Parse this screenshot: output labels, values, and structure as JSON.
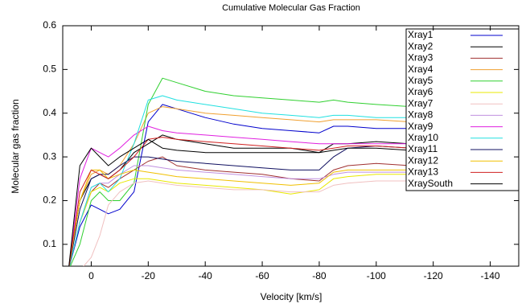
{
  "chart_data": {
    "type": "line",
    "title": "Cumulative Molecular Gas Fraction",
    "xlabel": "Velocity [km/s]",
    "ylabel": "Molecular gas fraction",
    "x": [
      8,
      4,
      0,
      -3,
      -6,
      -10,
      -15,
      -20,
      -25,
      -30,
      -40,
      -50,
      -60,
      -70,
      -80,
      -85,
      -90,
      -100,
      -112
    ],
    "xlim": [
      10,
      -150
    ],
    "xticks": [
      0,
      -20,
      -40,
      -60,
      -80,
      -100,
      -120,
      -140
    ],
    "ylim": [
      0.05,
      0.6
    ],
    "yticks": [
      0.1,
      0.2,
      0.3,
      0.4,
      0.5,
      0.6
    ],
    "legend": "upper right",
    "series": [
      {
        "name": "Xray1",
        "color": "#0000cc",
        "values": [
          0.04,
          0.14,
          0.19,
          0.18,
          0.17,
          0.18,
          0.22,
          0.38,
          0.42,
          0.41,
          0.39,
          0.375,
          0.365,
          0.36,
          0.355,
          0.37,
          0.37,
          0.365,
          0.365
        ]
      },
      {
        "name": "Xray2",
        "color": "#000000",
        "values": [
          0.04,
          0.2,
          0.25,
          0.26,
          0.25,
          0.27,
          0.31,
          0.33,
          0.35,
          0.34,
          0.33,
          0.32,
          0.32,
          0.32,
          0.31,
          0.33,
          0.33,
          0.335,
          0.33
        ]
      },
      {
        "name": "Xray3",
        "color": "#a03030",
        "values": [
          0.04,
          0.15,
          0.22,
          0.24,
          0.23,
          0.25,
          0.27,
          0.29,
          0.3,
          0.28,
          0.27,
          0.265,
          0.26,
          0.25,
          0.245,
          0.27,
          0.28,
          0.285,
          0.28
        ]
      },
      {
        "name": "Xray4",
        "color": "#f0a030",
        "values": [
          0.04,
          0.2,
          0.26,
          0.27,
          0.26,
          0.28,
          0.33,
          0.4,
          0.415,
          0.41,
          0.4,
          0.395,
          0.39,
          0.385,
          0.38,
          0.385,
          0.385,
          0.385,
          0.38
        ]
      },
      {
        "name": "Xray5",
        "color": "#30d030",
        "values": [
          0.04,
          0.1,
          0.2,
          0.22,
          0.2,
          0.2,
          0.24,
          0.42,
          0.48,
          0.47,
          0.45,
          0.44,
          0.435,
          0.43,
          0.425,
          0.43,
          0.425,
          0.42,
          0.415
        ]
      },
      {
        "name": "Xray6",
        "color": "#e8e800",
        "values": [
          0.04,
          0.15,
          0.22,
          0.23,
          0.22,
          0.24,
          0.25,
          0.25,
          0.245,
          0.24,
          0.235,
          0.23,
          0.225,
          0.215,
          0.225,
          0.25,
          0.255,
          0.26,
          0.26
        ]
      },
      {
        "name": "Xray7",
        "color": "#f0c0c0",
        "values": [
          0.02,
          0.04,
          0.07,
          0.12,
          0.19,
          0.22,
          0.24,
          0.245,
          0.24,
          0.235,
          0.23,
          0.225,
          0.225,
          0.22,
          0.22,
          0.235,
          0.24,
          0.245,
          0.245
        ]
      },
      {
        "name": "Xray8",
        "color": "#c090e0",
        "values": [
          0.04,
          0.15,
          0.23,
          0.24,
          0.24,
          0.26,
          0.28,
          0.28,
          0.275,
          0.27,
          0.265,
          0.26,
          0.255,
          0.25,
          0.25,
          0.26,
          0.265,
          0.265,
          0.265
        ]
      },
      {
        "name": "Xray9",
        "color": "#e020e0",
        "values": [
          0.04,
          0.25,
          0.32,
          0.31,
          0.3,
          0.32,
          0.35,
          0.37,
          0.36,
          0.355,
          0.35,
          0.345,
          0.34,
          0.335,
          0.33,
          0.33,
          0.33,
          0.33,
          0.33
        ]
      },
      {
        "name": "Xray10",
        "color": "#20e0e0",
        "values": [
          0.04,
          0.15,
          0.23,
          0.24,
          0.22,
          0.25,
          0.33,
          0.43,
          0.44,
          0.43,
          0.42,
          0.41,
          0.4,
          0.395,
          0.39,
          0.395,
          0.395,
          0.39,
          0.39
        ]
      },
      {
        "name": "Xray11",
        "color": "#101060",
        "values": [
          0.04,
          0.18,
          0.25,
          0.26,
          0.26,
          0.28,
          0.3,
          0.3,
          0.295,
          0.29,
          0.285,
          0.28,
          0.275,
          0.27,
          0.27,
          0.3,
          0.32,
          0.325,
          0.32
        ]
      },
      {
        "name": "Xray12",
        "color": "#f0c000",
        "values": [
          0.04,
          0.2,
          0.27,
          0.27,
          0.25,
          0.26,
          0.27,
          0.265,
          0.26,
          0.255,
          0.25,
          0.245,
          0.24,
          0.235,
          0.24,
          0.265,
          0.27,
          0.27,
          0.27
        ]
      },
      {
        "name": "Xray13",
        "color": "#d02020",
        "values": [
          0.04,
          0.22,
          0.27,
          0.26,
          0.25,
          0.27,
          0.3,
          0.34,
          0.345,
          0.34,
          0.335,
          0.33,
          0.325,
          0.32,
          0.315,
          0.32,
          0.325,
          0.325,
          0.32
        ]
      },
      {
        "name": "XraySouth",
        "color": "#000000",
        "values": [
          0.04,
          0.28,
          0.32,
          0.3,
          0.28,
          0.3,
          0.32,
          0.34,
          0.32,
          0.315,
          0.31,
          0.31,
          0.31,
          0.31,
          0.31,
          0.315,
          0.32,
          0.32,
          0.315
        ]
      }
    ]
  }
}
